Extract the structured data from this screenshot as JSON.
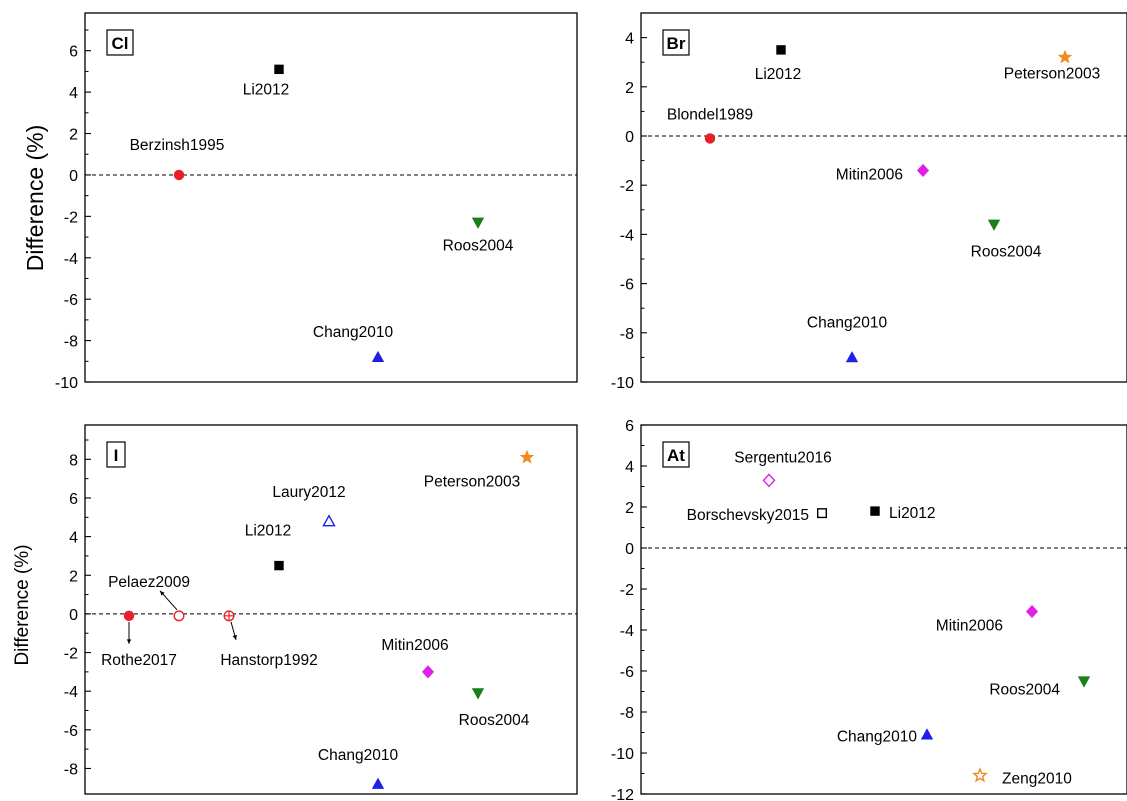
{
  "ylabel_main": "Difference (%)",
  "ylabel_lower_left": "Difference (%)",
  "chart_data": [
    {
      "type": "scatter",
      "panel_label": "Cl",
      "ylim": [
        -10,
        7
      ],
      "yticks": [
        -10,
        -8,
        -6,
        -4,
        -2,
        0,
        2,
        4,
        6
      ],
      "ytick_labels": [
        "-10",
        "-8",
        "-6",
        "-4",
        "-2",
        "0",
        "2",
        "4",
        "6"
      ],
      "xlim": [
        0,
        10
      ],
      "reference_line": 0,
      "points": [
        {
          "label": "Berzinsh1995",
          "x": 2,
          "y": 0.0,
          "marker": "circle",
          "filled": true,
          "color": "#e8202a"
        },
        {
          "label": "Li2012",
          "x": 4,
          "y": 5.1,
          "marker": "square",
          "filled": true,
          "color": "#000000"
        },
        {
          "label": "Chang2010",
          "x": 6,
          "y": -8.8,
          "marker": "triangle-up",
          "filled": true,
          "color": "#1f1fe6"
        },
        {
          "label": "Roos2004",
          "x": 8,
          "y": -2.3,
          "marker": "triangle-down",
          "filled": true,
          "color": "#1a7f1a"
        }
      ]
    },
    {
      "type": "scatter",
      "panel_label": "Br",
      "ylim": [
        -10,
        5
      ],
      "yticks": [
        -10,
        -8,
        -6,
        -4,
        -2,
        0,
        2,
        4
      ],
      "ytick_labels": [
        "-10",
        "-8",
        "-6",
        "-4",
        "-2",
        "0",
        "2",
        "4"
      ],
      "xlim": [
        0,
        10
      ],
      "reference_line": 0,
      "points": [
        {
          "label": "Blondel1989",
          "x": 2,
          "y": -0.1,
          "marker": "circle",
          "filled": true,
          "color": "#e8202a"
        },
        {
          "label": "Li2012",
          "x": 3.5,
          "y": 3.5,
          "marker": "square",
          "filled": true,
          "color": "#000000"
        },
        {
          "label": "Chang2010",
          "x": 5,
          "y": -9.0,
          "marker": "triangle-up",
          "filled": true,
          "color": "#1f1fe6"
        },
        {
          "label": "Mitin2006",
          "x": 6.5,
          "y": -1.4,
          "marker": "diamond",
          "filled": true,
          "color": "#e020e8"
        },
        {
          "label": "Roos2004",
          "x": 8,
          "y": -3.6,
          "marker": "triangle-down",
          "filled": true,
          "color": "#1a7f1a"
        },
        {
          "label": "Peterson2003",
          "x": 9.5,
          "y": 3.2,
          "marker": "star",
          "filled": true,
          "color": "#f28a1e"
        }
      ]
    },
    {
      "type": "scatter",
      "panel_label": "I",
      "ylim": [
        -9.5,
        9
      ],
      "yticks": [
        -8,
        -6,
        -4,
        -2,
        0,
        2,
        4,
        6,
        8
      ],
      "ytick_labels": [
        "-8",
        "-6",
        "-4",
        "-2",
        "0",
        "2",
        "4",
        "6",
        "8"
      ],
      "xlim": [
        0,
        10
      ],
      "reference_line": 0,
      "points": [
        {
          "label": "Rothe2017",
          "x": 1,
          "y": -0.1,
          "marker": "circle",
          "filled": true,
          "color": "#e8202a"
        },
        {
          "label": "Pelaez2009",
          "x": 2,
          "y": -0.1,
          "marker": "circle",
          "filled": false,
          "color": "#e8202a"
        },
        {
          "label": "Hanstorp1992",
          "x": 3,
          "y": -0.1,
          "marker": "circle-plus",
          "filled": false,
          "color": "#e8202a"
        },
        {
          "label": "Li2012",
          "x": 4,
          "y": 2.5,
          "marker": "square",
          "filled": true,
          "color": "#000000"
        },
        {
          "label": "Laury2012",
          "x": 5,
          "y": 4.8,
          "marker": "triangle-up",
          "filled": false,
          "color": "#1f1fe6"
        },
        {
          "label": "Chang2010",
          "x": 6,
          "y": -8.8,
          "marker": "triangle-up",
          "filled": true,
          "color": "#1f1fe6"
        },
        {
          "label": "Mitin2006",
          "x": 7,
          "y": -3.0,
          "marker": "diamond",
          "filled": true,
          "color": "#e020e8"
        },
        {
          "label": "Roos2004",
          "x": 8,
          "y": -4.1,
          "marker": "triangle-down",
          "filled": true,
          "color": "#1a7f1a"
        },
        {
          "label": "Peterson2003",
          "x": 9,
          "y": 8.1,
          "marker": "star",
          "filled": true,
          "color": "#f28a1e"
        }
      ]
    },
    {
      "type": "scatter",
      "panel_label": "At",
      "ylim": [
        -12,
        6
      ],
      "yticks": [
        -12,
        -10,
        -8,
        -6,
        -4,
        -2,
        0,
        2,
        4,
        6
      ],
      "ytick_labels": [
        "-12",
        "-10",
        "-8",
        "-6",
        "-4",
        "-2",
        "0",
        "2",
        "4",
        "6"
      ],
      "xlim": [
        0,
        10
      ],
      "reference_line": 0,
      "points": [
        {
          "label": "Sergentu2016",
          "x": 3.5,
          "y": 3.3,
          "marker": "diamond",
          "filled": false,
          "color": "#e020e8"
        },
        {
          "label": "Borschevsky2015",
          "x": 4.5,
          "y": 1.7,
          "marker": "square",
          "filled": false,
          "color": "#000000"
        },
        {
          "label": "Li2012",
          "x": 5.5,
          "y": 1.8,
          "marker": "square",
          "filled": true,
          "color": "#000000"
        },
        {
          "label": "Chang2010",
          "x": 6,
          "y": -9.1,
          "marker": "triangle-up",
          "filled": true,
          "color": "#1f1fe6"
        },
        {
          "label": "Mitin2006",
          "x": 7.5,
          "y": -3.1,
          "marker": "diamond",
          "filled": true,
          "color": "#e020e8"
        },
        {
          "label": "Roos2004",
          "x": 8.5,
          "y": -6.5,
          "marker": "triangle-down",
          "filled": true,
          "color": "#1a7f1a"
        },
        {
          "label": "Zeng2010",
          "x": 6.5,
          "y": -11.1,
          "marker": "star",
          "filled": false,
          "color": "#f28a1e"
        }
      ]
    }
  ]
}
